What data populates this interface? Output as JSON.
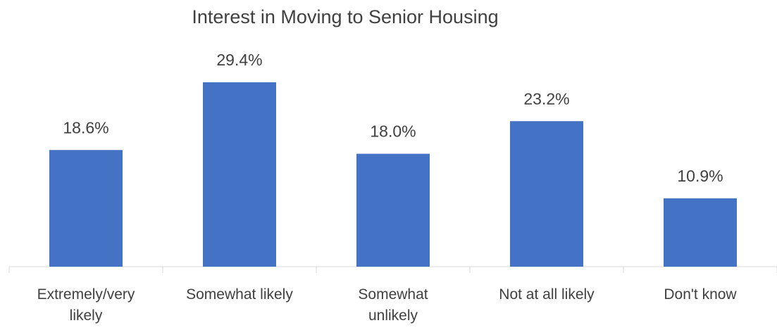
{
  "chart_data": {
    "type": "bar",
    "title": "Interest in Moving to Senior Housing",
    "categories": [
      "Extremely/very likely",
      "Somewhat likely",
      "Somewhat unlikely",
      "Not at all likely",
      "Don't know"
    ],
    "values": [
      18.6,
      29.4,
      18.0,
      23.2,
      10.9
    ],
    "value_labels": [
      "18.6%",
      "29.4%",
      "18.0%",
      "23.2%",
      "10.9%"
    ],
    "color": "#4472c4",
    "ylim": [
      0,
      35
    ]
  }
}
